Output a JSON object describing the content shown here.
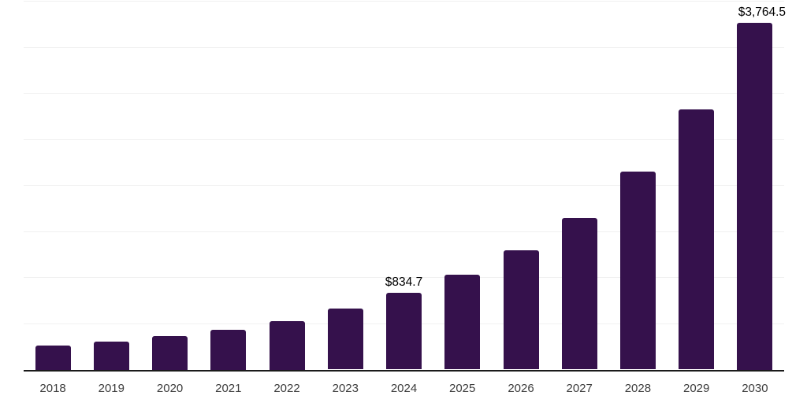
{
  "chart_data": {
    "type": "bar",
    "title": "",
    "xlabel": "",
    "ylabel": "",
    "categories": [
      "2018",
      "2019",
      "2020",
      "2021",
      "2022",
      "2023",
      "2024",
      "2025",
      "2026",
      "2027",
      "2028",
      "2029",
      "2030"
    ],
    "values": [
      260,
      303,
      363,
      431,
      525,
      661,
      834.7,
      1030,
      1295,
      1645,
      2150,
      2820,
      3764.5
    ],
    "data_labels": {
      "2024": "$834.7",
      "2030": "$3,764.5"
    },
    "ylim": [
      0,
      4000
    ],
    "gridline_step": 500,
    "grid": "horizontal-only",
    "y_tick_labels_visible": false,
    "legend_position": "none",
    "colors": {
      "bar": "#35114C",
      "axis_line": "#1a1a1a",
      "gridline": "#f0f0f0",
      "tick_label": "#3c3c3c",
      "data_label": "#000000",
      "background": "#ffffff"
    }
  }
}
